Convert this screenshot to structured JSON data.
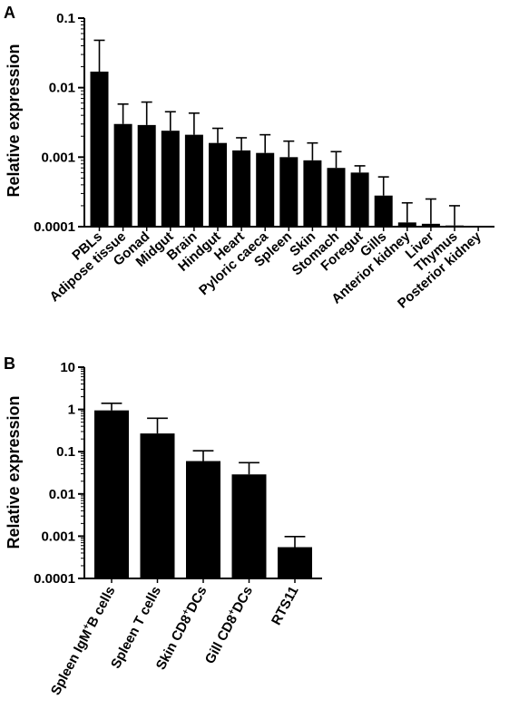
{
  "chart_data": [
    {
      "panel": "A",
      "type": "bar",
      "ylabel": "Relative expression",
      "yscale": "log",
      "ylim": [
        0.0001,
        0.1
      ],
      "ytick_labels": [
        "0.0001",
        "0.001",
        "0.01",
        "0.1"
      ],
      "ytick_values": [
        0.0001,
        0.001,
        0.01,
        0.1
      ],
      "categories": [
        "PBLs",
        "Adipose tissue",
        "Gonad",
        "Midgut",
        "Brain",
        "Hindgut",
        "Heart",
        "Pyloric caeca",
        "Spleen",
        "Skin",
        "Stomach",
        "Foregut",
        "Gills",
        "Anterior kidney",
        "Liver",
        "Thymus",
        "Posterior kidney"
      ],
      "values": [
        0.017,
        0.003,
        0.0029,
        0.0024,
        0.0021,
        0.0016,
        0.00125,
        0.00115,
        0.001,
        0.0009,
        0.0007,
        0.0006,
        0.00028,
        0.000115,
        0.00011,
        0.000104,
        0.0001
      ],
      "error_upper": [
        0.048,
        0.0058,
        0.0062,
        0.0045,
        0.0043,
        0.0026,
        0.0019,
        0.0021,
        0.0017,
        0.0016,
        0.0012,
        0.00075,
        0.00052,
        0.00022,
        0.00025,
        0.0002,
        null
      ]
    },
    {
      "panel": "B",
      "type": "bar",
      "ylabel": "Relative expression",
      "yscale": "log",
      "ylim": [
        0.0001,
        10
      ],
      "ytick_labels": [
        "0.0001",
        "0.001",
        "0.01",
        "0.1",
        "1",
        "10"
      ],
      "ytick_values": [
        0.0001,
        0.001,
        0.01,
        0.1,
        1,
        10
      ],
      "categories": [
        {
          "pre": "Spleen IgM",
          "sup": "+",
          "post": "B cells"
        },
        {
          "pre": "Spleen T cells",
          "sup": "",
          "post": ""
        },
        {
          "pre": "Skin CD8",
          "sup": "+",
          "post": "DCs"
        },
        {
          "pre": "Gill CD8",
          "sup": "+",
          "post": "DCs"
        },
        {
          "pre": "RTS11",
          "sup": "",
          "post": ""
        }
      ],
      "values": [
        0.95,
        0.27,
        0.06,
        0.029,
        0.00055
      ],
      "error_upper": [
        1.4,
        0.62,
        0.105,
        0.055,
        0.00098
      ]
    }
  ]
}
